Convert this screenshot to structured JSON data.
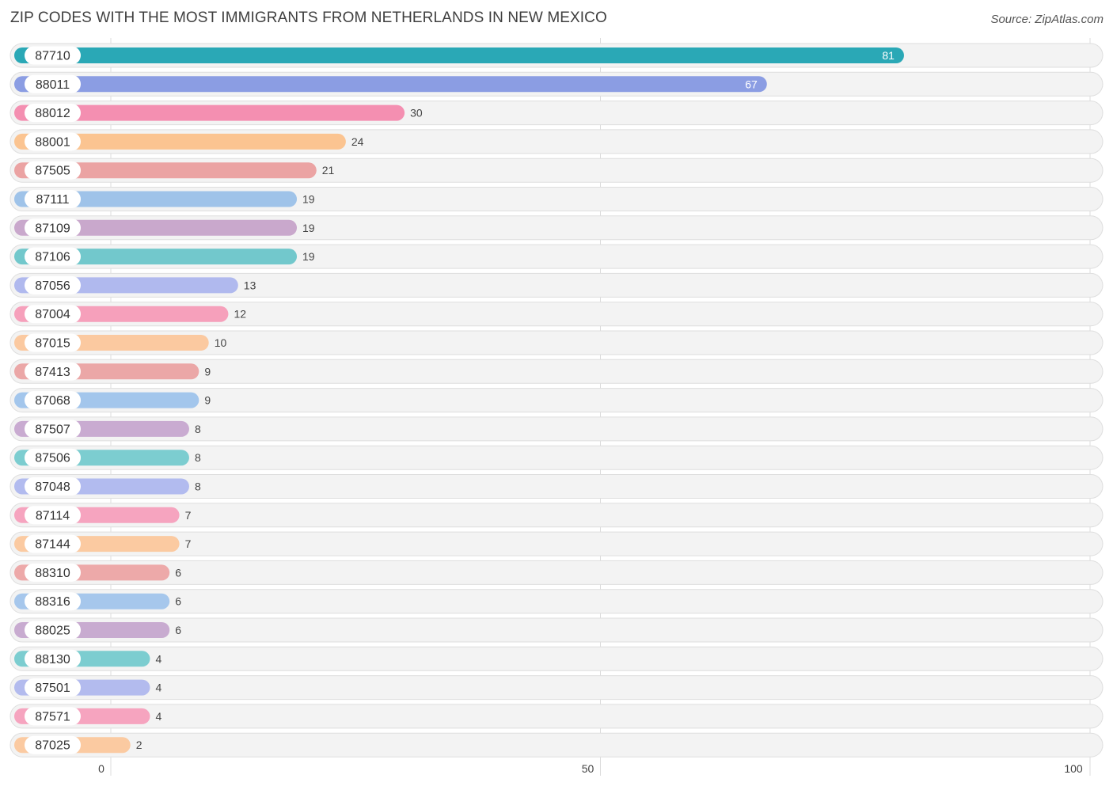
{
  "header": {
    "title": "ZIP CODES WITH THE MOST IMMIGRANTS FROM NETHERLANDS IN NEW MEXICO",
    "source": "Source: ZipAtlas.com"
  },
  "chart_data": {
    "type": "bar",
    "orientation": "horizontal",
    "title": "ZIP CODES WITH THE MOST IMMIGRANTS FROM NETHERLANDS IN NEW MEXICO",
    "xlabel": "",
    "ylabel": "",
    "xlim": [
      0,
      100
    ],
    "xticks": [
      "0",
      "50",
      "100"
    ],
    "grid": true,
    "categories": [
      "87710",
      "88011",
      "88012",
      "88001",
      "87505",
      "87111",
      "87109",
      "87106",
      "87056",
      "87004",
      "87015",
      "87413",
      "87068",
      "87507",
      "87506",
      "87048",
      "87114",
      "87144",
      "88310",
      "88316",
      "88025",
      "88130",
      "87501",
      "87571",
      "87025"
    ],
    "values": [
      81,
      67,
      30,
      24,
      21,
      19,
      19,
      19,
      13,
      12,
      10,
      9,
      9,
      8,
      8,
      8,
      7,
      7,
      6,
      6,
      6,
      4,
      4,
      4,
      2
    ],
    "value_labels": [
      "81",
      "67",
      "30",
      "24",
      "21",
      "19",
      "19",
      "19",
      "13",
      "12",
      "10",
      "9",
      "9",
      "8",
      "8",
      "8",
      "7",
      "7",
      "6",
      "6",
      "6",
      "4",
      "4",
      "4",
      "2"
    ],
    "colors": [
      "#2aa8b6",
      "#8b9de3",
      "#f48fb1",
      "#fbc491",
      "#eba3a3",
      "#9fc3e9",
      "#c9a8cc",
      "#72c8cc",
      "#b0b9ee",
      "#f6a0bb",
      "#fbc9a0",
      "#eba7a7",
      "#a3c6ec",
      "#c9abd1",
      "#7ccdd0",
      "#b2bbef",
      "#f6a4bf",
      "#fbcaa1",
      "#eda9a9",
      "#a6c7ec",
      "#c8abd0",
      "#7ccdd0",
      "#b3bbee",
      "#f6a4bf",
      "#fbcaa1"
    ]
  }
}
